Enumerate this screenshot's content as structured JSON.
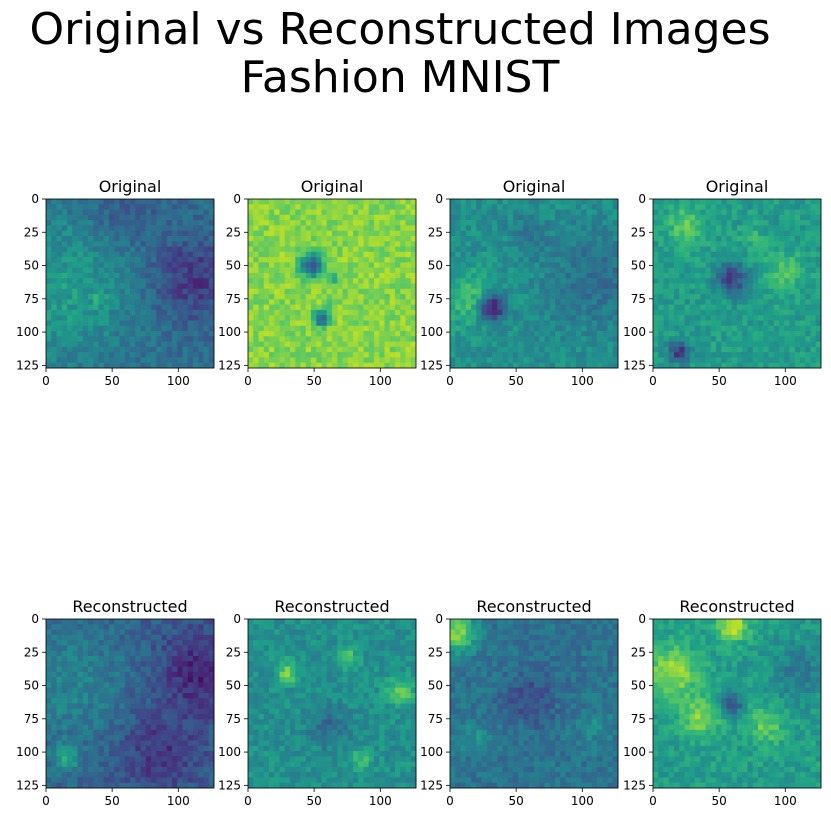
{
  "figure": {
    "suptitle_line1": "Original vs Reconstructed Images",
    "suptitle_line2": "Fashion MNIST"
  },
  "colormap": "viridis",
  "chart_data": [
    {
      "type": "heatmap",
      "title": "Original",
      "row": "top",
      "col": 1,
      "xlim": [
        0,
        127
      ],
      "ylim": [
        127,
        0
      ],
      "xticks": [
        0,
        50,
        100
      ],
      "yticks": [
        0,
        25,
        50,
        75,
        100,
        125
      ],
      "base": 0.35,
      "features": [
        {
          "x": 10,
          "y": 70,
          "r": 60,
          "v": 0.2
        },
        {
          "x": 110,
          "y": 60,
          "r": 30,
          "v": -0.2
        },
        {
          "x": 60,
          "y": 10,
          "r": 25,
          "v": -0.1
        },
        {
          "x": 40,
          "y": 75,
          "r": 5,
          "v": 0.15
        }
      ]
    },
    {
      "type": "heatmap",
      "title": "Original",
      "row": "top",
      "col": 2,
      "xlim": [
        0,
        127
      ],
      "ylim": [
        127,
        0
      ],
      "xticks": [
        0,
        50,
        100
      ],
      "yticks": [
        0,
        25,
        50,
        75,
        100,
        125
      ],
      "base": 0.82,
      "features": [
        {
          "x": 48,
          "y": 50,
          "r": 9,
          "v": -0.55
        },
        {
          "x": 55,
          "y": 90,
          "r": 6,
          "v": -0.5
        },
        {
          "x": 65,
          "y": 60,
          "r": 3,
          "v": -0.4
        },
        {
          "x": 60,
          "y": 80,
          "r": 2,
          "v": -0.35
        }
      ]
    },
    {
      "type": "heatmap",
      "title": "Original",
      "row": "top",
      "col": 3,
      "xlim": [
        0,
        127
      ],
      "ylim": [
        127,
        0
      ],
      "xticks": [
        0,
        50,
        100
      ],
      "yticks": [
        0,
        25,
        50,
        75,
        100,
        125
      ],
      "base": 0.5,
      "features": [
        {
          "x": 32,
          "y": 82,
          "r": 10,
          "v": -0.5
        },
        {
          "x": 60,
          "y": 25,
          "r": 14,
          "v": -0.1
        },
        {
          "x": 110,
          "y": 60,
          "r": 35,
          "v": -0.15
        },
        {
          "x": 15,
          "y": 75,
          "r": 20,
          "v": 0.2
        }
      ]
    },
    {
      "type": "heatmap",
      "title": "Original",
      "row": "top",
      "col": 4,
      "xlim": [
        0,
        127
      ],
      "ylim": [
        127,
        0
      ],
      "xticks": [
        0,
        50,
        100
      ],
      "yticks": [
        0,
        25,
        50,
        75,
        100,
        125
      ],
      "base": 0.55,
      "features": [
        {
          "x": 25,
          "y": 20,
          "r": 14,
          "v": 0.2
        },
        {
          "x": 100,
          "y": 55,
          "r": 16,
          "v": 0.15
        },
        {
          "x": 60,
          "y": 60,
          "r": 12,
          "v": -0.35
        },
        {
          "x": 20,
          "y": 115,
          "r": 8,
          "v": -0.4
        },
        {
          "x": 75,
          "y": 30,
          "r": 10,
          "v": 0.1
        }
      ]
    },
    {
      "type": "heatmap",
      "title": "Reconstructed",
      "row": "bottom",
      "col": 1,
      "xlim": [
        0,
        127
      ],
      "ylim": [
        127,
        0
      ],
      "xticks": [
        0,
        50,
        100
      ],
      "yticks": [
        0,
        25,
        50,
        75,
        100,
        125
      ],
      "base": 0.3,
      "features": [
        {
          "x": 15,
          "y": 50,
          "r": 50,
          "v": 0.15
        },
        {
          "x": 115,
          "y": 40,
          "r": 30,
          "v": -0.2
        },
        {
          "x": 85,
          "y": 100,
          "r": 30,
          "v": -0.15
        },
        {
          "x": 15,
          "y": 105,
          "r": 10,
          "v": 0.25
        }
      ]
    },
    {
      "type": "heatmap",
      "title": "Reconstructed",
      "row": "bottom",
      "col": 2,
      "xlim": [
        0,
        127
      ],
      "ylim": [
        127,
        0
      ],
      "xticks": [
        0,
        50,
        100
      ],
      "yticks": [
        0,
        25,
        50,
        75,
        100,
        125
      ],
      "base": 0.5,
      "features": [
        {
          "x": 30,
          "y": 40,
          "r": 8,
          "v": 0.3
        },
        {
          "x": 75,
          "y": 30,
          "r": 8,
          "v": 0.25
        },
        {
          "x": 115,
          "y": 55,
          "r": 10,
          "v": 0.3
        },
        {
          "x": 60,
          "y": 80,
          "r": 15,
          "v": -0.15
        },
        {
          "x": 85,
          "y": 105,
          "r": 8,
          "v": 0.2
        }
      ]
    },
    {
      "type": "heatmap",
      "title": "Reconstructed",
      "row": "bottom",
      "col": 3,
      "xlim": [
        0,
        127
      ],
      "ylim": [
        127,
        0
      ],
      "xticks": [
        0,
        50,
        100
      ],
      "yticks": [
        0,
        25,
        50,
        75,
        100,
        125
      ],
      "base": 0.38,
      "features": [
        {
          "x": 5,
          "y": 10,
          "r": 15,
          "v": 0.45
        },
        {
          "x": 60,
          "y": 60,
          "r": 20,
          "v": -0.15
        },
        {
          "x": 20,
          "y": 90,
          "r": 15,
          "v": 0.1
        },
        {
          "x": 110,
          "y": 80,
          "r": 15,
          "v": 0.1
        }
      ]
    },
    {
      "type": "heatmap",
      "title": "Reconstructed",
      "row": "bottom",
      "col": 4,
      "xlim": [
        0,
        127
      ],
      "ylim": [
        127,
        0
      ],
      "xticks": [
        0,
        50,
        100
      ],
      "yticks": [
        0,
        25,
        50,
        75,
        100,
        125
      ],
      "base": 0.55,
      "features": [
        {
          "x": 15,
          "y": 40,
          "r": 20,
          "v": 0.3
        },
        {
          "x": 35,
          "y": 75,
          "r": 15,
          "v": 0.25
        },
        {
          "x": 60,
          "y": 5,
          "r": 12,
          "v": 0.35
        },
        {
          "x": 85,
          "y": 80,
          "r": 15,
          "v": 0.2
        },
        {
          "x": 110,
          "y": 40,
          "r": 20,
          "v": -0.15
        },
        {
          "x": 60,
          "y": 65,
          "r": 8,
          "v": -0.3
        }
      ]
    }
  ]
}
